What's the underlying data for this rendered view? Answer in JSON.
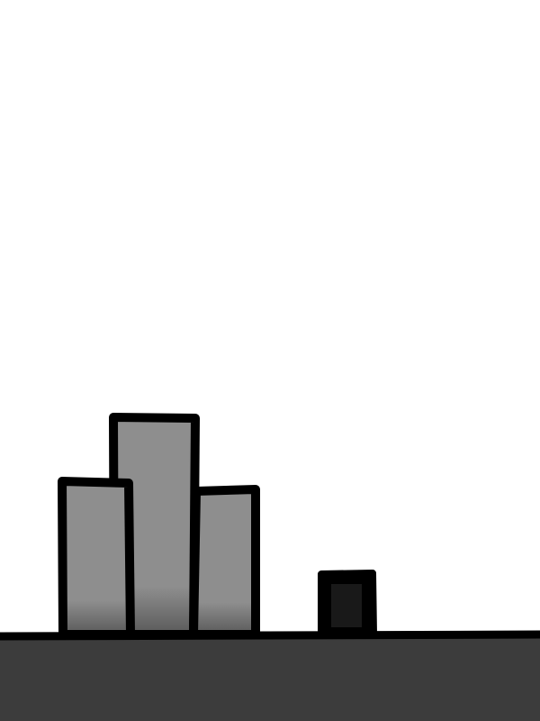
{
  "scene": {
    "background": "#ffffff",
    "ground_color": "#3c3c3c",
    "ground_outline": "#000000",
    "building_fill": "#8e8e8e",
    "building_shade": "#5a5a5a",
    "building_outline": "#000000",
    "player_fill": "#000000",
    "player_highlight": "#2a2a2a",
    "objects": [
      "ground",
      "building",
      "building",
      "building",
      "player-block"
    ]
  }
}
